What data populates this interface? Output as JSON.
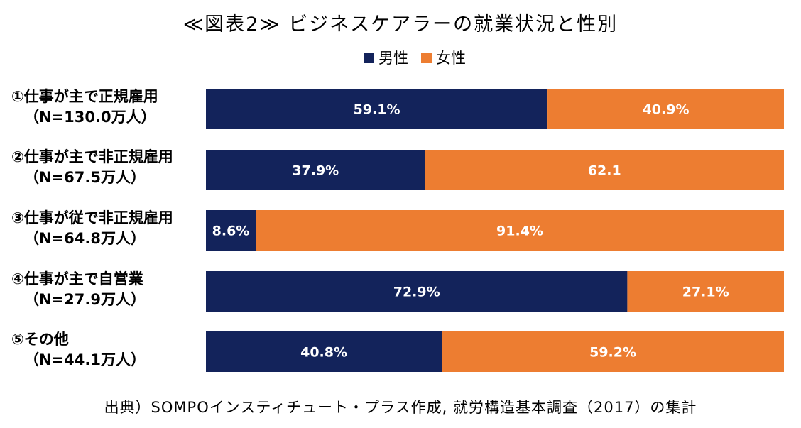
{
  "title": "≪図表2≫ ビジネスケアラーの就業状況と性別",
  "source": "出典）SOMPOインスティチュート・プラス作成, 就労構造基本調査（2017）の集計",
  "colors": {
    "male": "#13235b",
    "female": "#ed7d31"
  },
  "chart_data": {
    "type": "bar",
    "orientation": "horizontal",
    "stacked": "100%",
    "legend_position": "top",
    "categories": [
      {
        "label": "①仕事が主で正規雇用",
        "n_label": "（N=130.0万人）"
      },
      {
        "label": "②仕事が主で非正規雇用",
        "n_label": "（N=67.5万人）"
      },
      {
        "label": "③仕事が従で非正規雇用",
        "n_label": "（N=64.8万人）"
      },
      {
        "label": "④仕事が主で自営業",
        "n_label": "（N=27.9万人）"
      },
      {
        "label": "⑤その他",
        "n_label": "（N=44.1万人）"
      }
    ],
    "series": [
      {
        "name": "男性",
        "values": [
          59.1,
          37.9,
          8.6,
          72.9,
          40.8
        ],
        "labels": [
          "59.1%",
          "37.9%",
          "8.6%",
          "72.9%",
          "40.8%"
        ]
      },
      {
        "name": "女性",
        "values": [
          40.9,
          62.1,
          91.4,
          27.1,
          59.2
        ],
        "labels": [
          "40.9%",
          "62.1",
          "91.4%",
          "27.1%",
          "59.2%"
        ]
      }
    ]
  }
}
